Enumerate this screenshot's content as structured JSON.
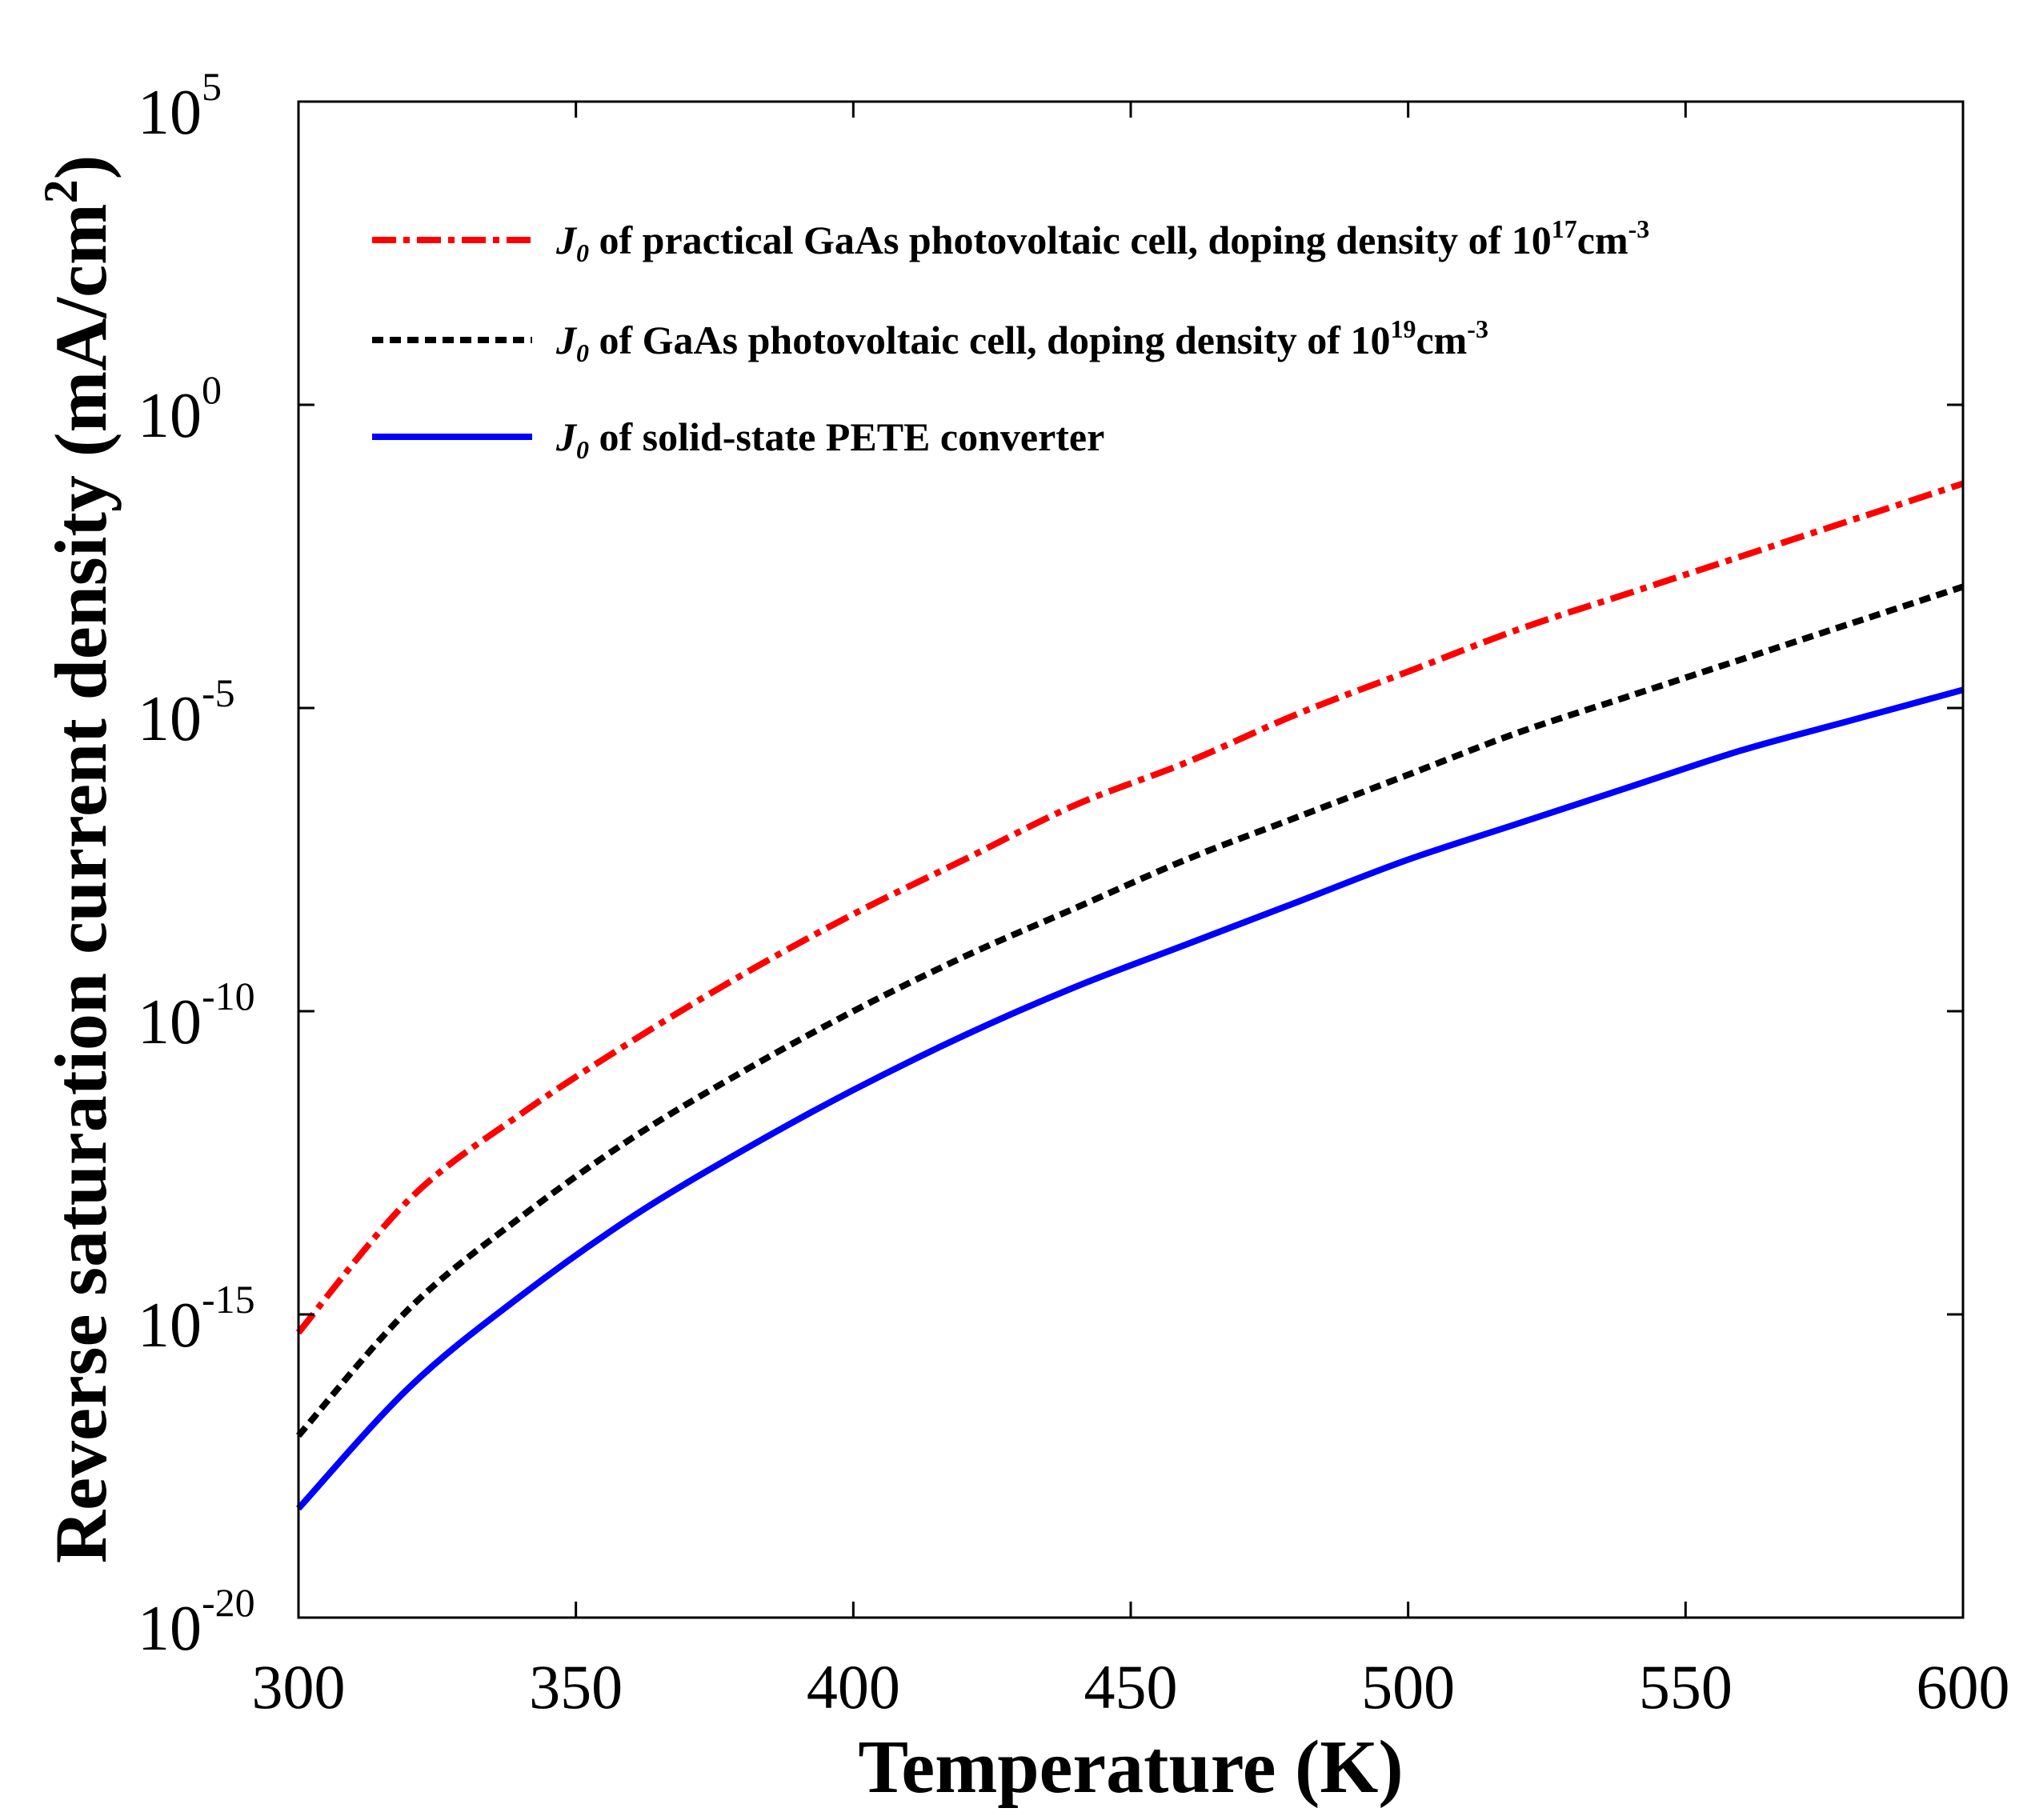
{
  "chart_data": {
    "type": "line",
    "xlabel": "Temperature (K)",
    "ylabel": "Reverse saturation current density (mA/cm",
    "ylabel_sup": "2",
    "ylabel_close": ")",
    "xlim": [
      300,
      600
    ],
    "ylim_log10": [
      -20,
      5
    ],
    "y_scale": "log",
    "legend_position": "top-left",
    "x_ticks": [
      300,
      350,
      400,
      450,
      500,
      550,
      600
    ],
    "y_ticks": [
      {
        "base": "10",
        "exp": "5",
        "log10": 5
      },
      {
        "base": "10",
        "exp": "0",
        "log10": 0
      },
      {
        "base": "10",
        "exp": "-5",
        "log10": -5
      },
      {
        "base": "10",
        "exp": "-10",
        "log10": -10
      },
      {
        "base": "10",
        "exp": "-15",
        "log10": -15
      },
      {
        "base": "10",
        "exp": "-20",
        "log10": -20
      }
    ],
    "x": [
      300,
      320,
      340,
      360,
      380,
      400,
      420,
      440,
      460,
      480,
      500,
      520,
      540,
      560,
      580,
      600
    ],
    "series": [
      {
        "name": "J0 of practical GaAs photovoltaic cell, doping density of 10^17cm^-3",
        "legend_italic": "J",
        "legend_sub": "0",
        "legend_text": " of practical GaAs photovoltaic cell, doping density of 10",
        "legend_sup": "17",
        "legend_text2": "cm",
        "legend_sup2": "-3",
        "color": "#ff0000",
        "style": "dash-dot",
        "log10_values": [
          -15.3,
          -13.1,
          -11.7,
          -10.5,
          -9.4,
          -8.4,
          -7.5,
          -6.6,
          -5.9,
          -5.1,
          -4.4,
          -3.7,
          -3.1,
          -2.5,
          -1.9,
          -1.3
        ]
      },
      {
        "name": "J0 of GaAs photovoltaic cell, doping density of 10^19cm^-3",
        "legend_italic": "J",
        "legend_sub": "0",
        "legend_text": " of  GaAs photovoltaic cell, doping density of 10",
        "legend_sup": "19",
        "legend_text2": "cm",
        "legend_sup2": "-3",
        "color": "#000000",
        "style": "dashed",
        "log10_values": [
          -17.0,
          -14.9,
          -13.4,
          -12.1,
          -11.0,
          -10.0,
          -9.1,
          -8.3,
          -7.5,
          -6.8,
          -6.1,
          -5.4,
          -4.8,
          -4.2,
          -3.6,
          -3.0
        ]
      },
      {
        "name": "J0 of solid-state PETE converter",
        "legend_italic": "J",
        "legend_sub": "0",
        "legend_text": " of  solid-state PETE converter",
        "legend_sup": "",
        "legend_text2": "",
        "legend_sup2": "",
        "color": "#0000ff",
        "style": "solid",
        "log10_values": [
          -18.2,
          -16.2,
          -14.7,
          -13.4,
          -12.3,
          -11.3,
          -10.4,
          -9.6,
          -8.9,
          -8.2,
          -7.5,
          -6.9,
          -6.3,
          -5.7,
          -5.2,
          -4.7
        ]
      }
    ]
  }
}
